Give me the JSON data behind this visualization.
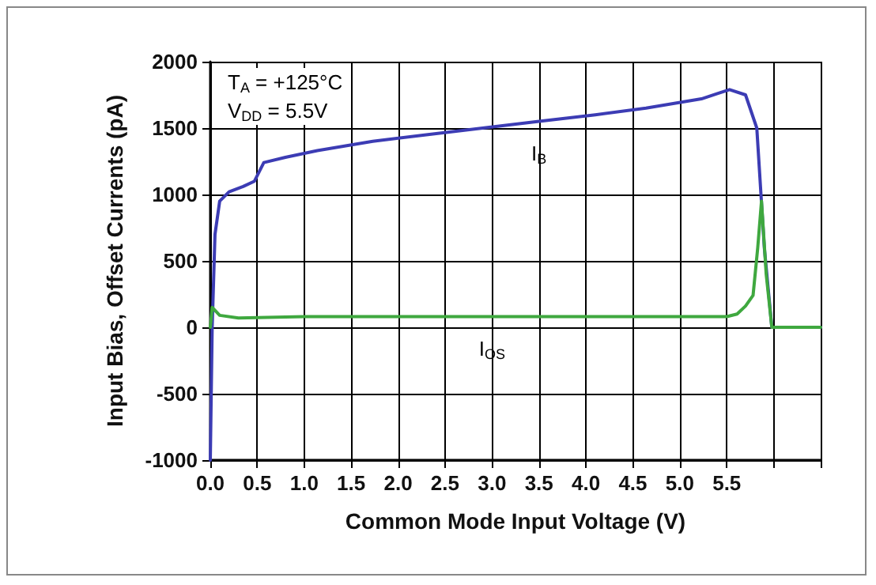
{
  "chart_data": {
    "type": "line",
    "xlabel": "Common Mode Input Voltage (V)",
    "ylabel": "Input Bias, Offset Currents (pA)",
    "annotations": [
      "T$_{A}$ = +125°C",
      "V$_{DD}$ = 5.5V"
    ],
    "series": [
      {
        "name": "I$_{B}$",
        "color": "#3c3cb4",
        "x": [
          0,
          0.02,
          0.05,
          0.1,
          0.2,
          0.35,
          0.47,
          0.57,
          0.8,
          1.14,
          1.73,
          2.3,
          2.9,
          3.5,
          4.1,
          4.64,
          5.23,
          5.4,
          5.53,
          5.7,
          5.82,
          5.9,
          5.98,
          6.2,
          6.5
        ],
        "values": [
          -1000,
          0,
          700,
          950,
          1020,
          1060,
          1100,
          1240,
          1280,
          1330,
          1400,
          1450,
          1500,
          1550,
          1600,
          1650,
          1720,
          1760,
          1790,
          1750,
          1500,
          600,
          0,
          0,
          0
        ]
      },
      {
        "name": "I$_{OS}$",
        "color": "#3fa83f",
        "x": [
          0,
          0.02,
          0.1,
          0.3,
          1,
          2,
          3,
          4,
          5,
          5.5,
          5.61,
          5.7,
          5.78,
          5.83,
          5.87,
          5.92,
          5.98,
          6.2,
          6.5
        ],
        "values": [
          0,
          150,
          90,
          70,
          80,
          80,
          80,
          80,
          80,
          80,
          100,
          160,
          240,
          600,
          950,
          400,
          0,
          0,
          0
        ]
      }
    ],
    "xlim": [
      0,
      6.5
    ],
    "xticks": [
      {
        "value": 0,
        "label": "0.0"
      },
      {
        "value": 0.5,
        "label": "0.5"
      },
      {
        "value": 1,
        "label": "1.0"
      },
      {
        "value": 1.5,
        "label": "1.5"
      },
      {
        "value": 2,
        "label": "2.0"
      },
      {
        "value": 2.5,
        "label": "2.5"
      },
      {
        "value": 3,
        "label": "3.0"
      },
      {
        "value": 3.5,
        "label": "3.5"
      },
      {
        "value": 4,
        "label": "4.0"
      },
      {
        "value": 4.5,
        "label": "4.5"
      },
      {
        "value": 5,
        "label": "5.0"
      },
      {
        "value": 5.5,
        "label": "5.5"
      },
      {
        "value": 6,
        "label": null
      },
      {
        "value": 6.5,
        "label": null
      }
    ],
    "ylim": [
      -1000,
      2000
    ],
    "yticks": [
      -1000,
      -500,
      0,
      500,
      1000,
      1500,
      2000
    ],
    "grid": true,
    "marker": "none",
    "line_style": "solid"
  }
}
